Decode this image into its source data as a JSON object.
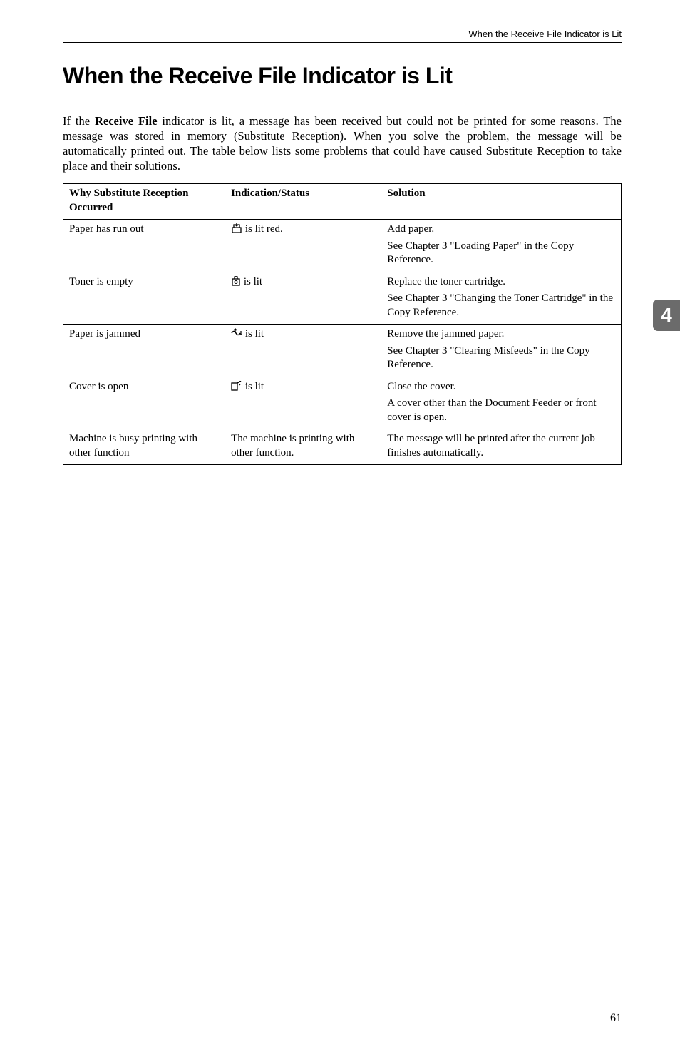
{
  "runningHead": "When the Receive File Indicator is Lit",
  "title": "When the Receive File Indicator is Lit",
  "intro_parts": {
    "p1": "If the ",
    "bold": "Receive File",
    "p2": " indicator is lit, a message has been received but could not be printed for some reasons. The message was stored in memory (Substitute Reception). When you solve the problem, the message will be automatically printed out. The table below lists some problems that could have caused Substitute Reception to take place and their solutions."
  },
  "table": {
    "headers": {
      "c1": "Why Substitute Reception Occurred",
      "c2": "Indication/Status",
      "c3": "Solution"
    },
    "rows": [
      {
        "c1": "Paper has run out",
        "c2_icon": "paper-tray-icon",
        "c2_text": " is lit red.",
        "c3a": "Add paper.",
        "c3b": "See Chapter 3 \"Loading Paper\" in the Copy Reference."
      },
      {
        "c1": "Toner is empty",
        "c2_icon": "toner-icon",
        "c2_text": " is lit",
        "c3a": "Replace the toner cartridge.",
        "c3b": "See Chapter 3 \"Changing the Toner Cartridge\" in the Copy Reference."
      },
      {
        "c1": "Paper is jammed",
        "c2_icon": "jam-icon",
        "c2_text": " is lit",
        "c3a": "Remove the jammed paper.",
        "c3b": "See Chapter 3 \"Clearing Misfeeds\" in the Copy Reference."
      },
      {
        "c1": "Cover is open",
        "c2_icon": "cover-icon",
        "c2_text": " is lit",
        "c3a": "Close the cover.",
        "c3b": "A cover other than the Document Feeder or front cover is open."
      },
      {
        "c1": "Machine is busy printing with other function",
        "c2_plain": "The machine is printing with other function.",
        "c3a": "The message will be printed after the current job finishes automatically."
      }
    ]
  },
  "tabNumber": "4",
  "pageNumber": "61",
  "icons": {
    "paper-tray-icon": "<svg width='16' height='14' viewBox='0 0 16 14'><path d='M2 6 L14 6 L14 13 L2 13 Z' fill='none' stroke='black' stroke-width='1.3'/><path d='M4 6 L4 2 L12 2 L12 6' fill='none' stroke='black' stroke-width='1.3'/><path d='M8 0 L8 4 M6 2 L8 4 L10 2' fill='none' stroke='black' stroke-width='1.3'/></svg>",
    "toner-icon": "<svg width='14' height='14' viewBox='0 0 14 14'><rect x='2' y='4' width='10' height='9' fill='none' stroke='black' stroke-width='1.3'/><circle cx='7' cy='8.5' r='2' fill='none' stroke='black' stroke-width='1.1'/><path d='M5 4 L5 1 L9 1 L9 4' fill='none' stroke='black' stroke-width='1.3'/><path d='M7 -1 L7 2' stroke='black' stroke-width='1.3'/></svg>",
    "jam-icon": "<svg width='16' height='14' viewBox='0 0 16 14'><path d='M1 7 Q4 2 7 7 Q10 12 13 7' fill='none' stroke='black' stroke-width='1.5'/><path d='M6 1 L6 7 M4 3 L6 1 L8 3' fill='none' stroke='black' stroke-width='1.4'/><path d='M14 9 L14 4 M13 9 L15 9' fill='none' stroke='black' stroke-width='1.2'/></svg>",
    "cover-icon": "<svg width='16' height='14' viewBox='0 0 16 14'><rect x='1' y='3' width='8' height='10' fill='none' stroke='black' stroke-width='1.3'/><path d='M9 3 L14 0' stroke='black' stroke-width='1.5'/><path d='M11 4 L13 6' stroke='black' stroke-width='1.2'/></svg>"
  }
}
